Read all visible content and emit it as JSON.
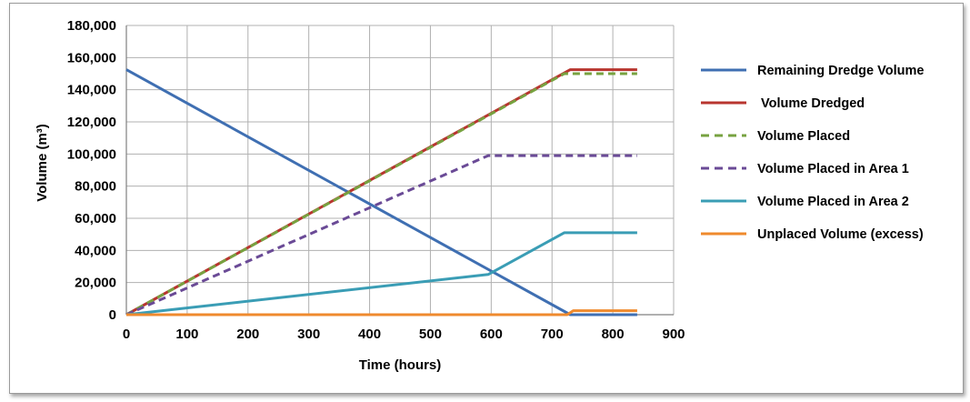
{
  "chart_data": {
    "type": "line",
    "xlabel": "Time (hours)",
    "ylabel": "Volume (m³)",
    "xlim": [
      0,
      900
    ],
    "ylim": [
      0,
      180000
    ],
    "xticks": [
      0,
      100,
      200,
      300,
      400,
      500,
      600,
      700,
      800,
      900
    ],
    "yticks": [
      0,
      20000,
      40000,
      60000,
      80000,
      100000,
      120000,
      140000,
      160000,
      180000
    ],
    "xtick_labels": [
      "0",
      "100",
      "200",
      "300",
      "400",
      "500",
      "600",
      "700",
      "800",
      "900"
    ],
    "ytick_labels": [
      "0",
      "20,000",
      "40,000",
      "60,000",
      "80,000",
      "100,000",
      "120,000",
      "140,000",
      "160,000",
      "180,000"
    ],
    "grid": true,
    "legend_position": "right",
    "series": [
      {
        "name": "Remaining Dredge Volume",
        "color": "#3f6fb2",
        "dash": "solid",
        "points": [
          [
            0,
            152500
          ],
          [
            730,
            0
          ],
          [
            840,
            0
          ]
        ]
      },
      {
        "name": " Volume Dredged",
        "color": "#b8352f",
        "dash": "solid",
        "points": [
          [
            0,
            0
          ],
          [
            730,
            152500
          ],
          [
            840,
            152500
          ]
        ]
      },
      {
        "name": "Volume Placed",
        "color": "#77a240",
        "dash": "dashed",
        "points": [
          [
            0,
            0
          ],
          [
            720,
            150000
          ],
          [
            840,
            150000
          ]
        ]
      },
      {
        "name": "Volume Placed in Area 1",
        "color": "#6a4a96",
        "dash": "dashed",
        "points": [
          [
            0,
            0
          ],
          [
            595,
            99000
          ],
          [
            840,
            99000
          ]
        ]
      },
      {
        "name": "Volume Placed in Area 2",
        "color": "#3a9db5",
        "dash": "solid",
        "points": [
          [
            0,
            0
          ],
          [
            595,
            25000
          ],
          [
            720,
            51000
          ],
          [
            840,
            51000
          ]
        ]
      },
      {
        "name": "Unplaced Volume (excess)",
        "color": "#ef8a2d",
        "dash": "solid",
        "points": [
          [
            0,
            0
          ],
          [
            725,
            0
          ],
          [
            735,
            2500
          ],
          [
            840,
            2500
          ]
        ]
      }
    ]
  }
}
